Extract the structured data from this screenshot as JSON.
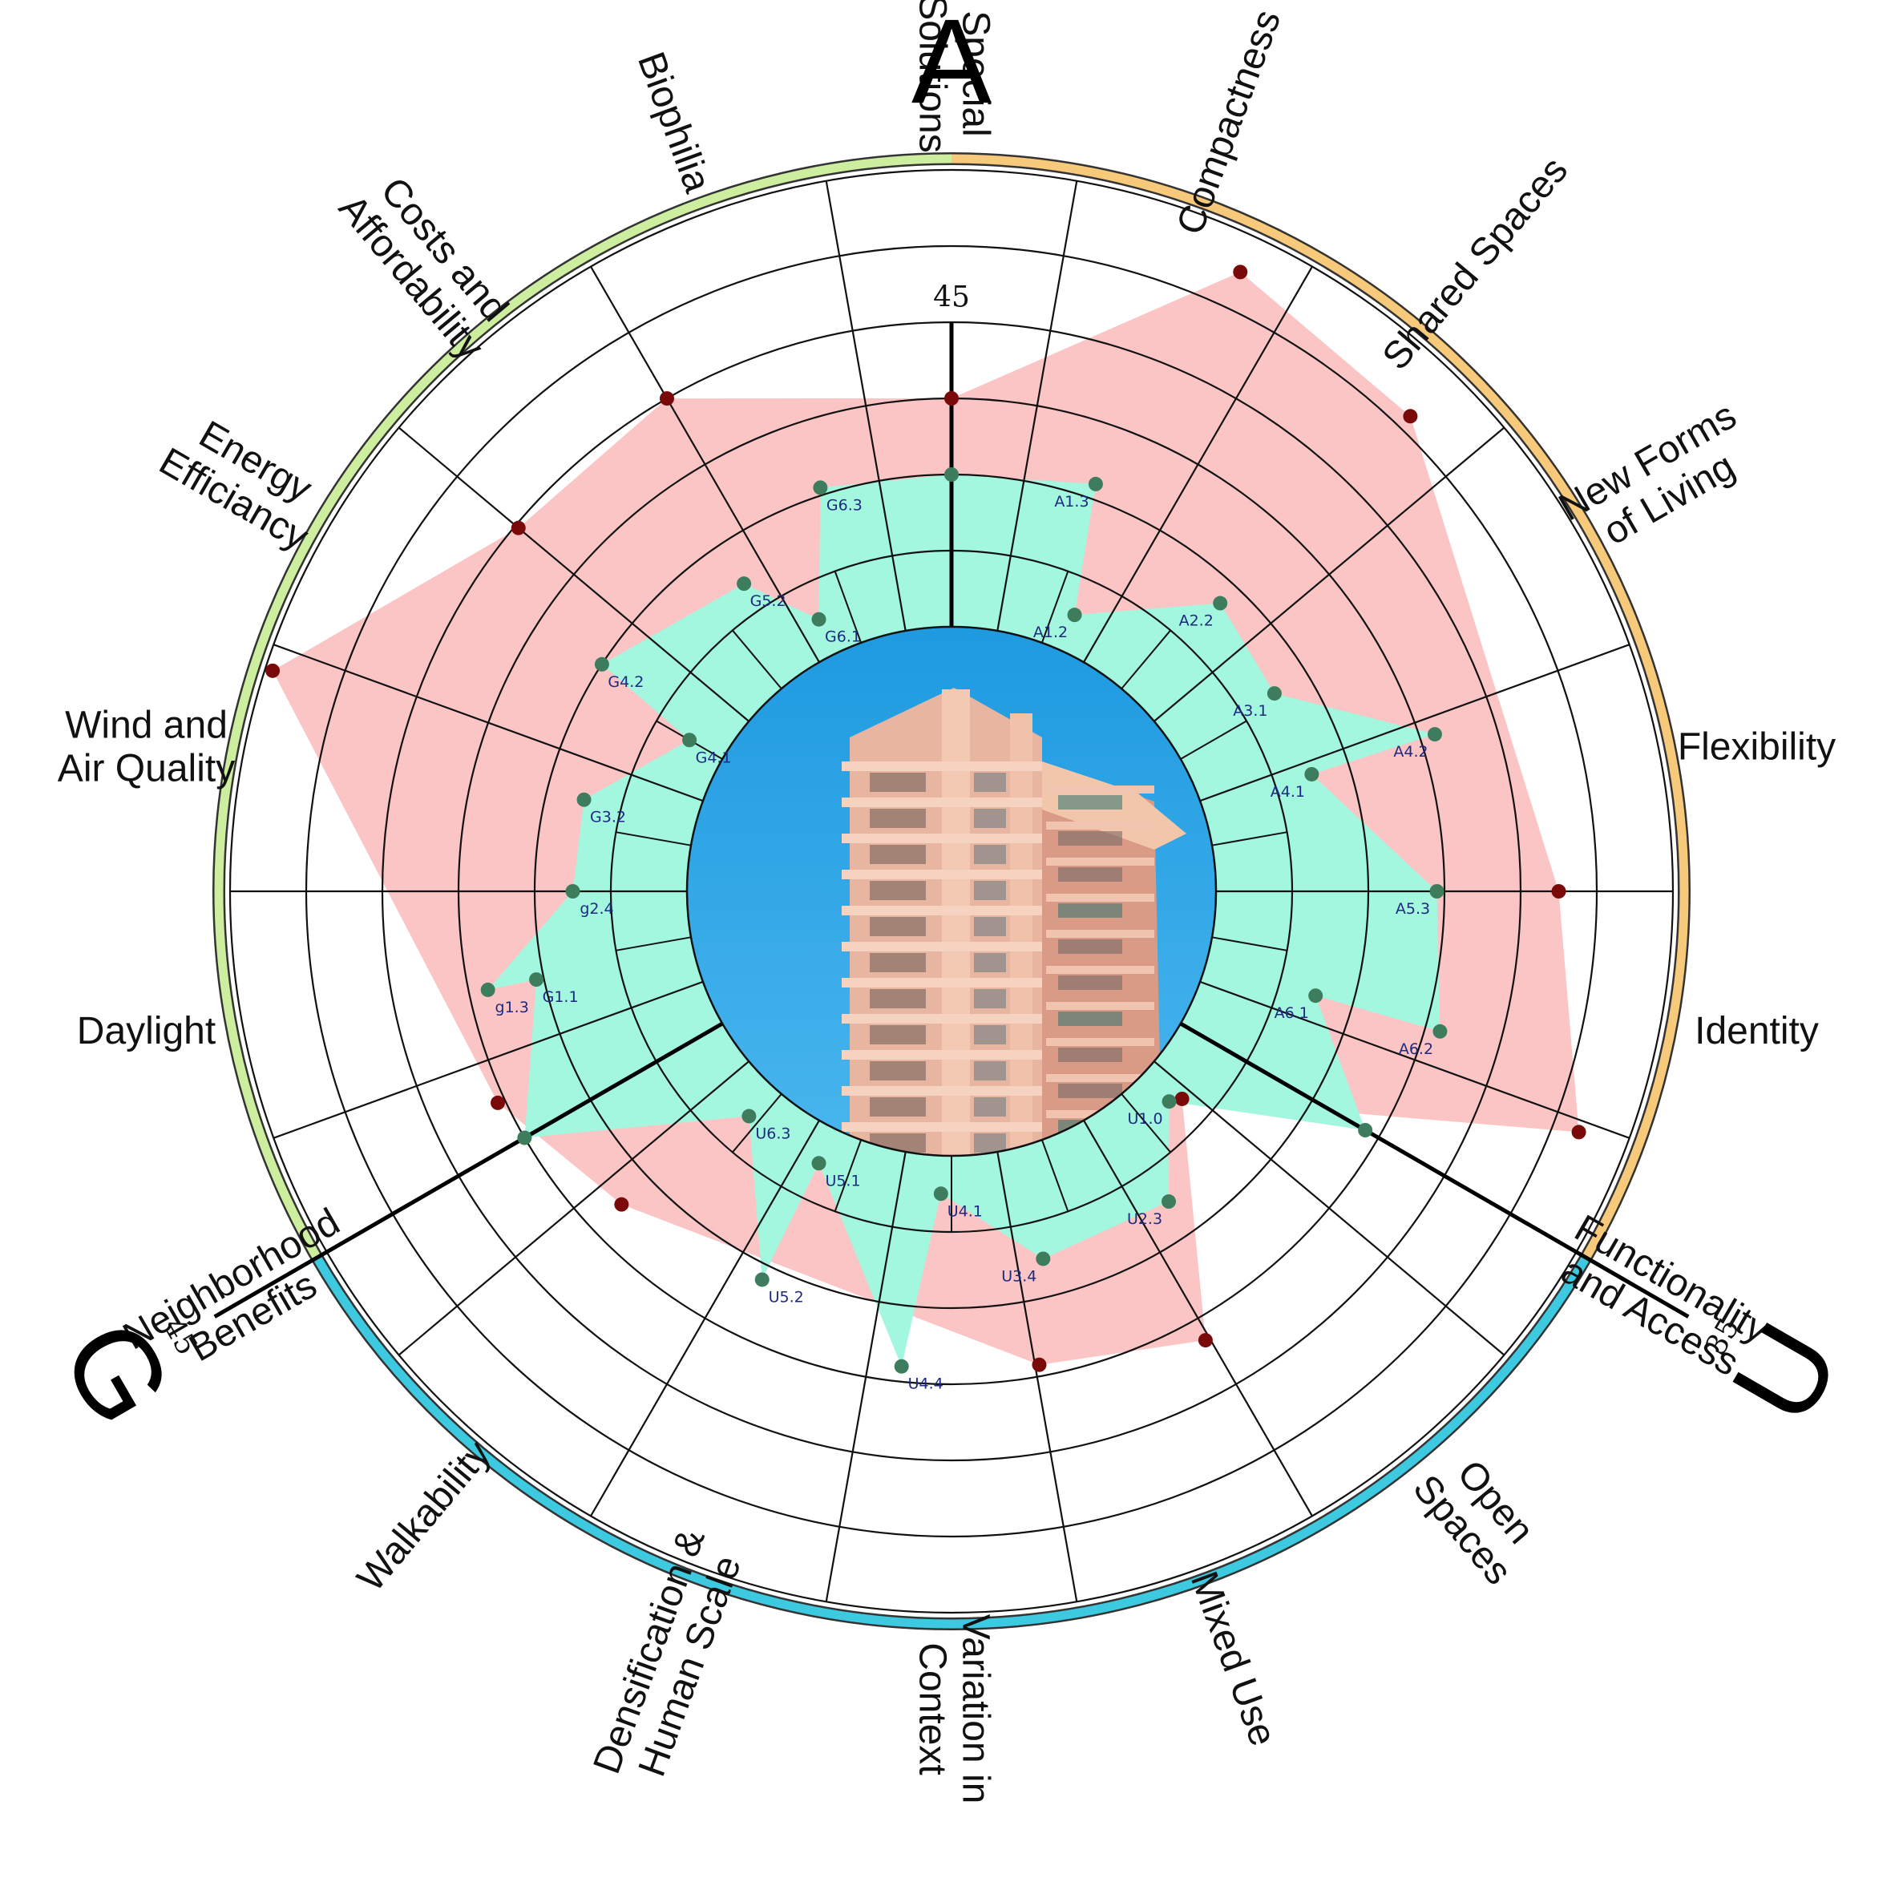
{
  "chart_data": {
    "type": "radar",
    "title": "",
    "sections": [
      {
        "letter": "A",
        "axis_max": "45",
        "color": "#f7c97a"
      },
      {
        "letter": "U",
        "axis_max": "35",
        "color": "#3dc9e0"
      },
      {
        "letter": "G",
        "axis_max": "45",
        "color": "#cdee9e"
      }
    ],
    "categories": [
      {
        "label": [
          "Compactness"
        ],
        "section": "A"
      },
      {
        "label": [
          "Shared Spaces"
        ],
        "section": "A"
      },
      {
        "label": [
          "New Forms",
          "of Living"
        ],
        "section": "A"
      },
      {
        "label": [
          "Flexibility"
        ],
        "section": "A"
      },
      {
        "label": [
          "Identity"
        ],
        "section": "A"
      },
      {
        "label": [
          "Functionality",
          "and Access"
        ],
        "section": "A"
      },
      {
        "label": [
          "Open",
          "Spaces"
        ],
        "section": "U"
      },
      {
        "label": [
          "Mixed Use"
        ],
        "section": "U"
      },
      {
        "label": [
          "Variation in",
          "Context"
        ],
        "section": "U"
      },
      {
        "label": [
          "Densification &",
          "Human Scale"
        ],
        "section": "U"
      },
      {
        "label": [
          "Walkability"
        ],
        "section": "U"
      },
      {
        "label": [
          "Neighborhood",
          "Benefits"
        ],
        "section": "U"
      },
      {
        "label": [
          "Daylight"
        ],
        "section": "G"
      },
      {
        "label": [
          "Wind and",
          "Air Quality"
        ],
        "section": "G"
      },
      {
        "label": [
          "Energy",
          "Efficiancy"
        ],
        "section": "G"
      },
      {
        "label": [
          "Costs and",
          "Affordability"
        ],
        "section": "G"
      },
      {
        "label": [
          "Biophilia"
        ],
        "section": "G"
      },
      {
        "label": [
          "Special",
          "Solutions"
        ],
        "section": "G"
      }
    ],
    "series": [
      {
        "color": "#fcc5c5",
        "marker_color": "#7a0a0a",
        "points": [
          {
            "angle": 0.0,
            "r": 3.0
          },
          {
            "angle": 25.0,
            "r": 5.5
          },
          {
            "angle": 44.0,
            "r": 5.2
          },
          {
            "angle": 90.0,
            "r": 4.5
          },
          {
            "angle": 111.0,
            "r": 5.35
          },
          {
            "angle": 132.0,
            "r": 0.6
          },
          {
            "angle": 150.5,
            "r": 3.3
          },
          {
            "angle": 169.5,
            "r": 2.85
          },
          {
            "angle": 226.5,
            "r": 2.5
          },
          {
            "angle": 245.0,
            "r": 3.1
          },
          {
            "angle": 288.0,
            "r": 5.9
          },
          {
            "angle": 310.0,
            "r": 3.95
          },
          {
            "angle": 330.0,
            "r": 4.0
          }
        ]
      },
      {
        "color": "#a3f7de",
        "marker_color": "#3e7c5e",
        "points": [
          {
            "angle": 0.0,
            "r": 2.0,
            "code": ""
          },
          {
            "angle": 19.5,
            "r": 2.2,
            "code": "A1.3"
          },
          {
            "angle": 24.0,
            "r": 0.5,
            "code": "A1.2"
          },
          {
            "angle": 43.0,
            "r": 1.7,
            "code": "A2.2"
          },
          {
            "angle": 58.5,
            "r": 1.5,
            "code": "A3.1"
          },
          {
            "angle": 72.0,
            "r": 3.2,
            "code": "A4.2"
          },
          {
            "angle": 72.0,
            "r": 1.5,
            "code": "A4.1"
          },
          {
            "angle": 90.0,
            "r": 2.9,
            "code": "A5.3"
          },
          {
            "angle": 106.0,
            "r": 3.2,
            "code": "A6.2"
          },
          {
            "angle": 106.0,
            "r": 1.5,
            "code": "A6.1"
          },
          {
            "angle": 120.0,
            "r": 2.8,
            "code": ""
          },
          {
            "angle": 134.0,
            "r": 0.5,
            "code": "U1.0"
          },
          {
            "angle": 145.0,
            "r": 1.5,
            "code": "U2.3"
          },
          {
            "angle": 166.0,
            "r": 1.5,
            "code": "U3.4"
          },
          {
            "angle": 182.0,
            "r": 0.5,
            "code": "U4.1"
          },
          {
            "angle": 186.0,
            "r": 2.8,
            "code": "U4.4"
          },
          {
            "angle": 206.0,
            "r": 0.5,
            "code": "U5.1"
          },
          {
            "angle": 206.0,
            "r": 2.2,
            "code": "U5.2"
          },
          {
            "angle": 222.0,
            "r": 0.5,
            "code": "U6.3"
          },
          {
            "angle": 240.0,
            "r": 3.0,
            "code": ""
          },
          {
            "angle": 258.0,
            "r": 2.1,
            "code": "G1.1"
          },
          {
            "angle": 258.0,
            "r": 2.75,
            "code": "g1.3"
          },
          {
            "angle": 270.0,
            "r": 1.5,
            "code": "g2.4"
          },
          {
            "angle": 284.0,
            "r": 1.5,
            "code": "G3.2"
          },
          {
            "angle": 300.0,
            "r": 0.5,
            "code": "G4.1"
          },
          {
            "angle": 303.0,
            "r": 2.0,
            "code": "G4.2"
          },
          {
            "angle": 326.0,
            "r": 1.4,
            "code": "G5.2"
          },
          {
            "angle": 334.0,
            "r": 0.5,
            "code": "G6.1"
          },
          {
            "angle": 342.0,
            "r": 2.1,
            "code": "G6.3"
          }
        ]
      }
    ],
    "rings": 6,
    "center_image": "photo of a tall residential apartment tower against blue sky"
  }
}
